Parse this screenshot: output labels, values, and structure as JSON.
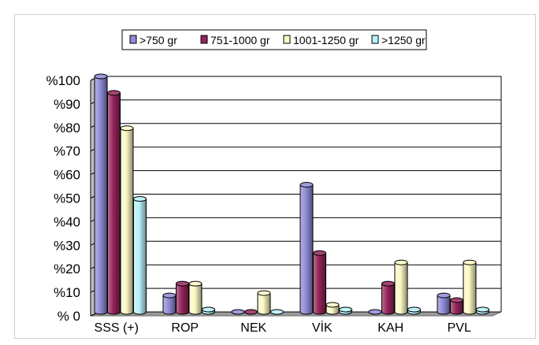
{
  "chart_data": {
    "type": "bar",
    "title": "",
    "xlabel": "",
    "ylabel": "",
    "categories": [
      "SSS (+)",
      "ROP",
      "NEK",
      "VİK",
      "KAH",
      "PVL"
    ],
    "y_ticks": [
      "% 0",
      "%10",
      "%20",
      "%30",
      "%40",
      "%50",
      "%60",
      "%70",
      "%80",
      "%90",
      "%100"
    ],
    "ylim": [
      0,
      100
    ],
    "grid": true,
    "legend_position": "top",
    "bar_style": "3d-cylinder",
    "series": [
      {
        "name": ">750 gr",
        "color": "#8f8ad6",
        "values": [
          100,
          7,
          0,
          54,
          0,
          7
        ]
      },
      {
        "name": "751-1000 gr",
        "color": "#94245a",
        "values": [
          93,
          12,
          0,
          25,
          12,
          5
        ]
      },
      {
        "name": "1001-1250 gr",
        "color": "#fbf9c4",
        "values": [
          78,
          12,
          8,
          3,
          21,
          21
        ]
      },
      {
        "name": ">1250 gr",
        "color": "#b6f1f9",
        "values": [
          48,
          1,
          0,
          1,
          1,
          1
        ]
      }
    ]
  }
}
